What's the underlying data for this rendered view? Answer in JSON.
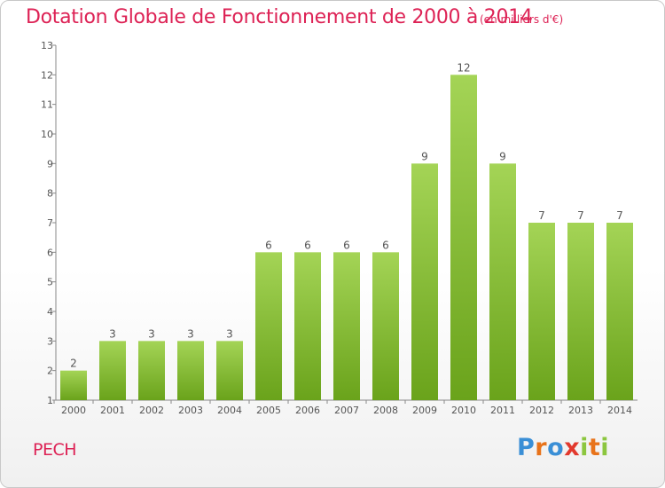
{
  "header": {
    "title": "Dotation Globale de Fonctionnement de 2000 à 2014",
    "unit": "(en milliers d'€)"
  },
  "footer": {
    "commune": "PECH",
    "brand": "Proxiti"
  },
  "colors": {
    "accent": "#dd2255",
    "bar_light": "#a4d456",
    "bar_dark": "#6aa31b"
  },
  "chart_data": {
    "type": "bar",
    "title": "Dotation Globale de Fonctionnement de 2000 à 2014",
    "subtitle": "(en milliers d'€)",
    "xlabel": "",
    "ylabel": "",
    "categories": [
      "2000",
      "2001",
      "2002",
      "2003",
      "2004",
      "2005",
      "2006",
      "2007",
      "2008",
      "2009",
      "2010",
      "2011",
      "2012",
      "2013",
      "2014"
    ],
    "values": [
      2,
      3,
      3,
      3,
      3,
      6,
      6,
      6,
      6,
      9,
      12,
      9,
      7,
      7,
      7
    ],
    "ylim": [
      1,
      13
    ],
    "yticks": [
      1,
      2,
      3,
      4,
      5,
      6,
      7,
      8,
      9,
      10,
      11,
      12,
      13
    ],
    "grid": false,
    "legend": "none"
  }
}
